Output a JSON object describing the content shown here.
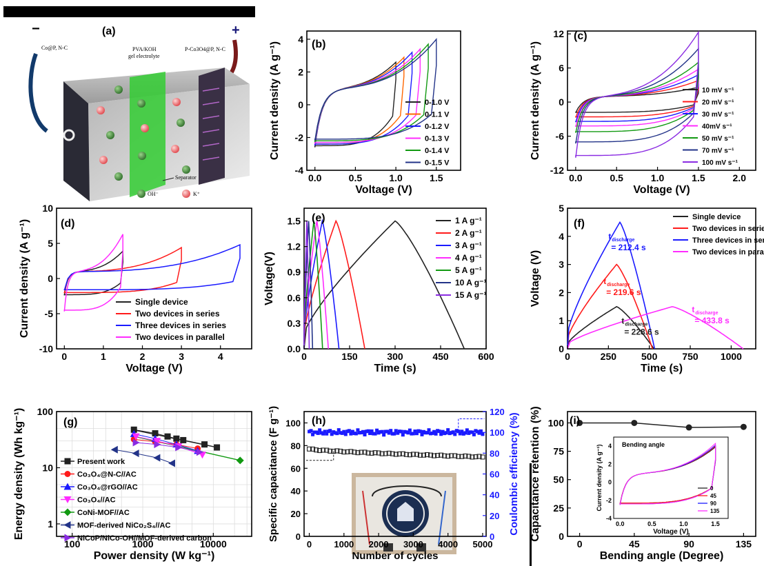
{
  "panels": {
    "a": {
      "letter": "(a)",
      "minus": "−",
      "plus": "+",
      "left_electrode": "Co@P, N-C",
      "electrolyte_line1": "PVA/KOH",
      "electrolyte_line2": "gel electrolyte",
      "right_electrode": "P-Co3O4@P, N-C",
      "separator": "Separator",
      "oh": "OH⁻",
      "k": "K⁺"
    },
    "b": {
      "letter": "(b)"
    },
    "c": {
      "letter": "(c)"
    },
    "d": {
      "letter": "(d)"
    },
    "e": {
      "letter": "(e)"
    },
    "f": {
      "letter": "(f)"
    },
    "g": {
      "letter": "(g)"
    },
    "h": {
      "letter": "(h)"
    },
    "i": {
      "letter": "(i)"
    }
  },
  "colors": {
    "black": "#222222",
    "red": "#ff1a1a",
    "blue": "#1a1aff",
    "magenta": "#ff2bff",
    "green": "#119911",
    "navy": "#223388",
    "violet": "#8a2be2",
    "gel": "#33cc33"
  },
  "chart_data": [
    {
      "id": "b",
      "type": "line",
      "subtype": "cv-loops",
      "xlabel": "Voltage (V)",
      "ylabel": "Current density (A g⁻¹)",
      "xlim": [
        -0.1,
        1.8
      ],
      "ylim": [
        -4,
        4.5
      ],
      "xticks": [
        "0.0",
        "0.5",
        "1.0",
        "1.5"
      ],
      "yticks": [
        "-4",
        "-2",
        "0",
        "2",
        "4"
      ],
      "legend_position": "lower-right",
      "series": [
        {
          "name": "0-1.0 V",
          "color": "#222222",
          "vmax": 1.0,
          "upper_end": 2.6,
          "lower_min": -2.5
        },
        {
          "name": "0-1.1 V",
          "color": "#ff6600",
          "vmax": 1.1,
          "upper_end": 2.9,
          "lower_min": -2.4
        },
        {
          "name": "0-1.2 V",
          "color": "#1a1aff",
          "vmax": 1.2,
          "upper_end": 3.2,
          "lower_min": -2.4
        },
        {
          "name": "0-1.3 V",
          "color": "#ff2bff",
          "vmax": 1.3,
          "upper_end": 3.4,
          "lower_min": -2.3
        },
        {
          "name": "0-1.4 V",
          "color": "#119911",
          "vmax": 1.4,
          "upper_end": 3.7,
          "lower_min": -2.2
        },
        {
          "name": "0-1.5 V",
          "color": "#223388",
          "vmax": 1.5,
          "upper_end": 4.0,
          "lower_min": -2.1
        }
      ]
    },
    {
      "id": "c",
      "type": "line",
      "subtype": "cv-loops",
      "xlabel": "Voltage (V)",
      "ylabel": "Current density (A g⁻¹)",
      "xlim": [
        -0.1,
        2.2
      ],
      "ylim": [
        -12,
        12.5
      ],
      "xticks": [
        "0.0",
        "0.5",
        "1.0",
        "1.5",
        "2.0"
      ],
      "yticks": [
        "-12",
        "-6",
        "0",
        "6",
        "12"
      ],
      "legend_position": "right",
      "series": [
        {
          "name": "10 mV s⁻¹",
          "color": "#222222",
          "vmax": 1.5,
          "upper_end": 2.6,
          "lower_min": -1.8
        },
        {
          "name": "20 mV s⁻¹",
          "color": "#ff1a1a",
          "vmax": 1.5,
          "upper_end": 3.8,
          "lower_min": -2.6
        },
        {
          "name": "30 mV s⁻¹",
          "color": "#1a1aff",
          "vmax": 1.5,
          "upper_end": 4.8,
          "lower_min": -3.4
        },
        {
          "name": "40mV s⁻¹",
          "color": "#ff2bff",
          "vmax": 1.5,
          "upper_end": 5.8,
          "lower_min": -4.2
        },
        {
          "name": "50 mV s⁻¹",
          "color": "#119911",
          "vmax": 1.5,
          "upper_end": 7.0,
          "lower_min": -5.2
        },
        {
          "name": "70 mV s⁻¹",
          "color": "#223388",
          "vmax": 1.5,
          "upper_end": 9.4,
          "lower_min": -7.0
        },
        {
          "name": "100 mV s⁻¹",
          "color": "#8a2be2",
          "vmax": 1.5,
          "upper_end": 12.3,
          "lower_min": -9.4
        }
      ]
    },
    {
      "id": "d",
      "type": "line",
      "subtype": "cv-loops",
      "xlabel": "Voltage (V)",
      "ylabel": "Current density (A g⁻¹)",
      "xlim": [
        -0.2,
        4.8
      ],
      "ylim": [
        -10,
        10
      ],
      "xticks": [
        "0",
        "1",
        "2",
        "3",
        "4"
      ],
      "yticks": [
        "-10",
        "-5",
        "0",
        "5",
        "10"
      ],
      "legend_position": "lower-right",
      "series": [
        {
          "name": "Single device",
          "color": "#222222",
          "vmax": 1.5,
          "upper_end": 3.9,
          "lower_min": -2.3
        },
        {
          "name": "Two devices in series",
          "color": "#ff1a1a",
          "vmax": 3.0,
          "upper_end": 4.4,
          "lower_min": -2.0
        },
        {
          "name": "Three devices in series",
          "color": "#1a1aff",
          "vmax": 4.5,
          "upper_end": 4.8,
          "lower_min": -1.6
        },
        {
          "name": "Two devices in parallel",
          "color": "#ff2bff",
          "vmax": 1.5,
          "upper_end": 6.3,
          "lower_min": -4.5
        }
      ]
    },
    {
      "id": "e",
      "type": "line",
      "subtype": "gcd",
      "xlabel": "Time (s)",
      "ylabel": "Voltage(V)",
      "xlim": [
        0,
        600
      ],
      "ylim": [
        0,
        1.65
      ],
      "xticks": [
        "0",
        "150",
        "300",
        "450",
        "600"
      ],
      "yticks": [
        "0.0",
        "0.3",
        "0.6",
        "0.9",
        "1.2",
        "1.5"
      ],
      "legend_position": "right",
      "series": [
        {
          "name": "1 A g⁻¹",
          "color": "#222222",
          "tc": 300,
          "td": 228,
          "vmax": 1.5
        },
        {
          "name": "2 A g⁻¹",
          "color": "#ff1a1a",
          "tc": 105,
          "td": 95,
          "vmax": 1.5
        },
        {
          "name": "3 A g⁻¹",
          "color": "#1a1aff",
          "tc": 60,
          "td": 55,
          "vmax": 1.5
        },
        {
          "name": "4 A g⁻¹",
          "color": "#ff2bff",
          "tc": 42,
          "td": 38,
          "vmax": 1.5
        },
        {
          "name": "5 A g⁻¹",
          "color": "#119911",
          "tc": 32,
          "td": 29,
          "vmax": 1.5
        },
        {
          "name": "10 A g⁻¹",
          "color": "#223388",
          "tc": 15,
          "td": 13,
          "vmax": 1.5
        },
        {
          "name": "15 A g⁻¹",
          "color": "#8a2be2",
          "tc": 9,
          "td": 8,
          "vmax": 1.5
        }
      ]
    },
    {
      "id": "f",
      "type": "line",
      "subtype": "gcd",
      "xlabel": "Time (s)",
      "ylabel": "Voltage (V)",
      "xlim": [
        0,
        1150
      ],
      "ylim": [
        0,
        5
      ],
      "xticks": [
        "0",
        "250",
        "500",
        "750",
        "1000"
      ],
      "yticks": [
        "0",
        "1",
        "2",
        "3",
        "4",
        "5"
      ],
      "legend_position": "top-right",
      "series": [
        {
          "name": "Single device",
          "color": "#222222",
          "tc": 300,
          "td": 228.6,
          "vmax": 1.5
        },
        {
          "name": "Two devices in series",
          "color": "#ff1a1a",
          "tc": 300,
          "td": 219.6,
          "vmax": 3.0
        },
        {
          "name": "Three devices in series",
          "color": "#1a1aff",
          "tc": 320,
          "td": 212.4,
          "vmax": 4.5
        },
        {
          "name": "Two devices in parallel",
          "color": "#ff2bff",
          "tc": 640,
          "td": 433.8,
          "vmax": 1.5
        }
      ],
      "annotations": [
        {
          "prefix": "t",
          "sub": "discharge",
          "value": "= 212.4 s",
          "color": "#1a1aff",
          "at": [
            250,
            3.9
          ]
        },
        {
          "prefix": "t",
          "sub": "discharge",
          "value": "= 219.6 s",
          "color": "#ff1a1a",
          "at": [
            220,
            2.3
          ]
        },
        {
          "prefix": "t",
          "sub": "discharge",
          "value": "= 228.6 s",
          "color": "#222222",
          "at": [
            330,
            0.9
          ]
        },
        {
          "prefix": "t",
          "sub": "discharge",
          "value": "= 433.8 s",
          "color": "#ff2bff",
          "at": [
            760,
            1.3
          ]
        }
      ]
    },
    {
      "id": "g",
      "type": "scatter",
      "subtype": "ragone",
      "xlabel": "Power density (W kg⁻¹)",
      "ylabel": "Energy density (Wh kg⁻¹)",
      "xscale": "log",
      "yscale": "log",
      "xlim": [
        60,
        35000
      ],
      "ylim": [
        0.6,
        100
      ],
      "xticks": [
        {
          "v": 100,
          "t": "100"
        },
        {
          "v": 1000,
          "t": "1000"
        },
        {
          "v": 10000,
          "t": "10000"
        }
      ],
      "yticks": [
        {
          "v": 1,
          "t": "1"
        },
        {
          "v": 10,
          "t": "10"
        },
        {
          "v": 100,
          "t": "100"
        }
      ],
      "grid": true,
      "legend_position": "lower-left",
      "series": [
        {
          "name": "Present work",
          "color": "#222222",
          "marker": "square",
          "points": [
            [
              750,
              47.6
            ],
            [
              1500,
              41
            ],
            [
              2250,
              36
            ],
            [
              3000,
              33
            ],
            [
              3750,
              31
            ],
            [
              7500,
              26
            ],
            [
              11250,
              23
            ]
          ]
        },
        {
          "name": "Co₃O₄@N-C//AC",
          "color": "#ff1a1a",
          "marker": "circle",
          "points": [
            [
              750,
              32
            ],
            [
              1500,
              29
            ],
            [
              3000,
              26
            ],
            [
              6000,
              22
            ]
          ]
        },
        {
          "name": "Co₃O₄@rGO//AC",
          "color": "#1a1aff",
          "marker": "triangle-up",
          "points": [
            [
              750,
              40
            ],
            [
              1500,
              33
            ],
            [
              3000,
              26
            ],
            [
              6000,
              20
            ]
          ]
        },
        {
          "name": "Co₃O₄//AC",
          "color": "#ff2bff",
          "marker": "triangle-down",
          "points": [
            [
              800,
              36
            ],
            [
              1600,
              30
            ],
            [
              3200,
              24
            ],
            [
              7000,
              17
            ]
          ]
        },
        {
          "name": "CoNi-MOF//AC",
          "color": "#119911",
          "marker": "diamond",
          "points": [
            [
              24000,
              13.5
            ]
          ]
        },
        {
          "name": "MOF-derived NiCo₂S₄//AC",
          "color": "#223388",
          "marker": "triangle-left",
          "points": [
            [
              400,
              21
            ],
            [
              800,
              18
            ],
            [
              1600,
              15
            ],
            [
              2600,
              12
            ]
          ]
        },
        {
          "name": "NiCoP/NiCo-OH//MOF-derived carbon",
          "color": "#8a2be2",
          "marker": "triangle-right",
          "points": [
            [
              800,
              28
            ],
            [
              1600,
              26
            ],
            [
              3200,
              23
            ],
            [
              6400,
              19
            ]
          ]
        }
      ],
      "fit_lines": [
        {
          "color": "#222222",
          "from": [
            750,
            47
          ],
          "to": [
            11250,
            23
          ]
        },
        {
          "color": "#119911",
          "from": [
            700,
            37
          ],
          "to": [
            24000,
            13.5
          ]
        }
      ]
    },
    {
      "id": "h",
      "type": "scatter",
      "subtype": "cycling",
      "xlabel": "Number of cycles",
      "ylabel": "Specific capacitance (F g⁻¹)",
      "y2label": "Coulombic efficiency (%)",
      "xlim": [
        -150,
        5100
      ],
      "ylim": [
        0,
        110
      ],
      "y2lim": [
        0,
        120
      ],
      "xticks": [
        "0",
        "1000",
        "2000",
        "3000",
        "4000",
        "5000"
      ],
      "yticks": [
        "0",
        "20",
        "40",
        "60",
        "80",
        "100"
      ],
      "y2ticks": [
        "0",
        "20",
        "40",
        "60",
        "80",
        "100",
        "120"
      ],
      "series": [
        {
          "name": "Specific capacitance",
          "color": "#222222",
          "marker": "square",
          "start": 77,
          "end": 70
        },
        {
          "name": "Coulombic efficiency",
          "color": "#1a1aff",
          "marker": "square",
          "mean": 100
        }
      ]
    },
    {
      "id": "i",
      "type": "line",
      "subtype": "retention",
      "xlabel": "Bending angle (Degree)",
      "ylabel": "Capacitance retention (%)",
      "xlim": [
        -10,
        145
      ],
      "ylim": [
        0,
        110
      ],
      "xticks": [
        "0",
        "45",
        "90",
        "135"
      ],
      "yticks": [
        "0",
        "25",
        "50",
        "75",
        "100"
      ],
      "x": [
        0,
        45,
        90,
        135
      ],
      "y": [
        100,
        100,
        96,
        96.5
      ],
      "inset": {
        "title": "Bending angle",
        "xlabel": "Voltage (V)",
        "ylabel": "Current density (A g⁻¹)",
        "xlim": [
          -0.1,
          1.7
        ],
        "ylim": [
          -4,
          5
        ],
        "xticks": [
          "0.0",
          "0.5",
          "1.0",
          "1.5"
        ],
        "yticks": [
          "-4",
          "-2",
          "0",
          "2",
          "4"
        ],
        "series": [
          {
            "name": "0",
            "color": "#222222",
            "vmax": 1.5,
            "upper_end": 3.9,
            "lower_min": -2.3
          },
          {
            "name": "45",
            "color": "#ff1a1a",
            "vmax": 1.5,
            "upper_end": 4.0,
            "lower_min": -2.3
          },
          {
            "name": "90",
            "color": "#1a1aff",
            "vmax": 1.5,
            "upper_end": 4.1,
            "lower_min": -2.4
          },
          {
            "name": "135",
            "color": "#ff2bff",
            "vmax": 1.5,
            "upper_end": 4.3,
            "lower_min": -2.4
          }
        ]
      }
    }
  ]
}
